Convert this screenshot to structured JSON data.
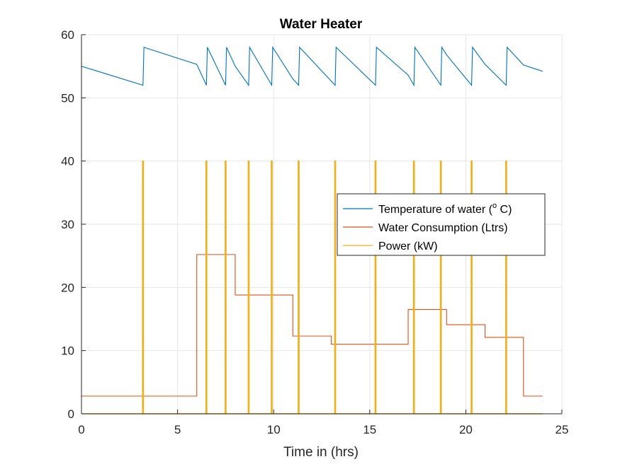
{
  "chart_data": {
    "type": "line",
    "title": "Water Heater",
    "xlabel": "Time in (hrs)",
    "ylabel": "",
    "xlim": [
      0,
      25
    ],
    "ylim": [
      0,
      60
    ],
    "xticks": [
      0,
      5,
      10,
      15,
      20,
      25
    ],
    "yticks": [
      0,
      10,
      20,
      30,
      40,
      50,
      60
    ],
    "grid": true,
    "legend_position": "right-middle",
    "series": [
      {
        "name": "Temperature of water (o C)",
        "legend_parts": {
          "before": "Temperature of water (",
          "superscript": "o",
          "after": " C)"
        },
        "color": "#0072BD",
        "style": "line",
        "x": [
          0,
          3.2,
          3.25,
          6,
          6.5,
          6.55,
          7.5,
          7.55,
          8,
          8.7,
          8.75,
          9.9,
          9.95,
          11,
          11.3,
          11.35,
          13.2,
          13.25,
          15.3,
          15.35,
          17,
          17.3,
          17.35,
          18.7,
          18.75,
          19,
          20.3,
          20.35,
          21,
          22.1,
          22.15,
          23,
          24
        ],
        "y": [
          55,
          52,
          58,
          55.3,
          52,
          58,
          52,
          58,
          55,
          52,
          58,
          52,
          58,
          53,
          52,
          58,
          52,
          58,
          52,
          58,
          53.6,
          52,
          58,
          52,
          58,
          56.8,
          52,
          58,
          55.3,
          52,
          58,
          55.2,
          54.2
        ]
      },
      {
        "name": "Water Consumption (Ltrs)",
        "color": "#D95319",
        "style": "step",
        "x": [
          0,
          6,
          8,
          11,
          13,
          17,
          19,
          21,
          23,
          24
        ],
        "y": [
          2.8,
          25.2,
          18.8,
          12.3,
          11.0,
          16.5,
          14.1,
          12.1,
          2.8,
          2.8
        ]
      },
      {
        "name": "Power (kW)",
        "color": "#EDB120",
        "style": "pulse",
        "baseline": 0,
        "peak": 40,
        "pulses": [
          3.2,
          6.5,
          7.5,
          8.7,
          9.9,
          11.3,
          13.2,
          15.3,
          17.3,
          18.7,
          20.3,
          22.1
        ],
        "x_end": 24
      }
    ]
  }
}
